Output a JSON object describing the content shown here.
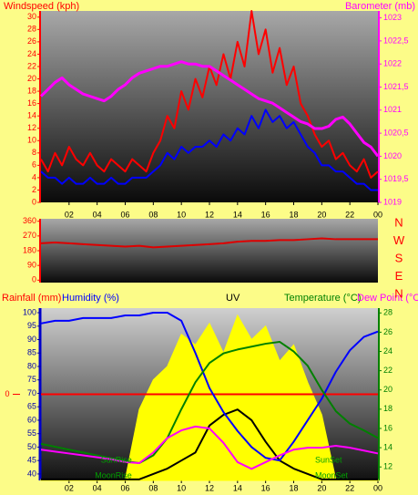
{
  "chart_data": [
    {
      "type": "line",
      "title_left": "Windspeed (kph)",
      "title_right": "Barometer (mb)",
      "x": [
        0,
        0.5,
        1,
        1.5,
        2,
        2.5,
        3,
        3.5,
        4,
        4.5,
        5,
        5.5,
        6,
        6.5,
        7,
        7.5,
        8,
        8.5,
        9,
        9.5,
        10,
        10.5,
        11,
        11.5,
        12,
        12.5,
        13,
        13.5,
        14,
        14.5,
        15,
        15.5,
        16,
        16.5,
        17,
        17.5,
        18,
        18.5,
        19,
        19.5,
        20,
        20.5,
        21,
        21.5,
        22,
        22.5,
        23,
        23.5,
        24
      ],
      "xlim": [
        0,
        24
      ],
      "xticks": [
        {
          "value": 2,
          "label": "02"
        },
        {
          "value": 4,
          "label": "04"
        },
        {
          "value": 6,
          "label": "06"
        },
        {
          "value": 8,
          "label": "08"
        },
        10,
        12,
        14,
        16,
        18,
        20,
        22,
        {
          "value": 24,
          "label": "00"
        }
      ],
      "ylim": [
        0,
        31
      ],
      "yticks": [
        0,
        2,
        4,
        6,
        8,
        10,
        12,
        14,
        16,
        18,
        20,
        22,
        24,
        26,
        28,
        30
      ],
      "y2lim": [
        1019,
        1023.15
      ],
      "y2ticks": [
        1019,
        {
          "value": 1019.5,
          "label": "1019,5"
        },
        1020,
        {
          "value": 1020.5,
          "label": "1020,5"
        },
        1021,
        {
          "value": 1021.5,
          "label": "1021,5"
        },
        1022,
        {
          "value": 1022.5,
          "label": "1022,5"
        },
        1023
      ],
      "series": [
        {
          "color": "#ff0000",
          "values": [
            7,
            5,
            8,
            6,
            9,
            7,
            6,
            8,
            6,
            5,
            7,
            6,
            5,
            7,
            6,
            5,
            8,
            10,
            14,
            12,
            18,
            15,
            20,
            17,
            22,
            19,
            24,
            20,
            26,
            22,
            31,
            24,
            28,
            21,
            25,
            19,
            22,
            16,
            14,
            11,
            9,
            10,
            7,
            8,
            6,
            5,
            7,
            4,
            5
          ]
        },
        {
          "color": "#0000ff",
          "values": [
            5,
            4,
            4,
            3,
            4,
            3,
            3,
            4,
            3,
            3,
            4,
            3,
            3,
            4,
            4,
            4,
            5,
            6,
            8,
            7,
            9,
            8,
            9,
            9,
            10,
            9,
            11,
            10,
            12,
            11,
            14,
            12,
            15,
            13,
            14,
            12,
            13,
            11,
            9,
            8,
            6,
            6,
            5,
            5,
            4,
            3,
            3,
            2,
            2
          ]
        },
        {
          "color": "#ff00ff",
          "axis": "y2",
          "values": [
            1021.3,
            1021.45,
            1021.6,
            1021.7,
            1021.55,
            1021.45,
            1021.35,
            1021.3,
            1021.25,
            1021.2,
            1021.3,
            1021.45,
            1021.55,
            1021.7,
            1021.8,
            1021.85,
            1021.9,
            1021.95,
            1021.95,
            1022.0,
            1022.05,
            1022.0,
            1022.0,
            1021.95,
            1021.95,
            1021.85,
            1021.75,
            1021.65,
            1021.55,
            1021.45,
            1021.35,
            1021.25,
            1021.2,
            1021.15,
            1021.05,
            1020.95,
            1020.85,
            1020.75,
            1020.7,
            1020.6,
            1020.6,
            1020.65,
            1020.8,
            1020.85,
            1020.7,
            1020.5,
            1020.3,
            1020.2,
            1020.0
          ]
        }
      ]
    },
    {
      "type": "line",
      "x": [
        0,
        1,
        2,
        3,
        4,
        5,
        6,
        7,
        8,
        9,
        10,
        11,
        12,
        13,
        14,
        15,
        16,
        17,
        18,
        19,
        20,
        21,
        22,
        23,
        24
      ],
      "xlim": [
        0,
        24
      ],
      "ylim": [
        -15,
        375
      ],
      "yticks": [
        0,
        90,
        180,
        270,
        360
      ],
      "compass": [
        "N",
        "W",
        "S",
        "E",
        "N"
      ],
      "series": [
        {
          "color": "#dd0000",
          "values": [
            225,
            230,
            225,
            220,
            215,
            210,
            205,
            210,
            200,
            205,
            210,
            215,
            220,
            225,
            235,
            240,
            240,
            245,
            245,
            250,
            255,
            250,
            250,
            250,
            250
          ]
        }
      ]
    },
    {
      "type": "line",
      "rainfall_label": "Rainfall (mm)",
      "humidity_label": "Humidity (%)",
      "uv_label": "UV",
      "temperature_label": "Temperature (°C)",
      "dewpoint_label": "Dew Point (°C",
      "x": [
        0,
        1,
        2,
        3,
        4,
        5,
        6,
        7,
        8,
        9,
        10,
        11,
        12,
        13,
        14,
        15,
        16,
        17,
        18,
        19,
        20,
        21,
        22,
        23,
        24
      ],
      "xlim": [
        0,
        24
      ],
      "xticks": [
        {
          "value": 2,
          "label": "02"
        },
        {
          "value": 4,
          "label": "04"
        },
        {
          "value": 6,
          "label": "06"
        },
        {
          "value": 8,
          "label": "08"
        },
        10,
        12,
        14,
        16,
        18,
        20,
        22,
        {
          "value": 24,
          "label": "00"
        }
      ],
      "ylim": [
        37.6,
        101.7
      ],
      "yticks": [
        40,
        45,
        50,
        55,
        60,
        65,
        70,
        75,
        80,
        85,
        90,
        95,
        100
      ],
      "y2lim": [
        10.6,
        28.5
      ],
      "y2ticks": [
        12,
        14,
        16,
        18,
        20,
        22,
        24,
        26,
        28
      ],
      "y3lim": [
        -1,
        1
      ],
      "y3ticks": [
        0
      ],
      "series": [
        {
          "color": "#ffff00",
          "area": true,
          "values": [
            38,
            38,
            38,
            38,
            38,
            38,
            38,
            64,
            75,
            80,
            92,
            88,
            96,
            85,
            99,
            90,
            95,
            82,
            88,
            74,
            62,
            38,
            38,
            38,
            38
          ]
        },
        {
          "color": "#000000",
          "values": [
            38,
            38,
            38,
            38,
            38,
            38,
            38,
            38,
            40,
            42,
            45,
            48,
            58,
            62,
            64,
            60,
            52,
            45,
            42,
            40,
            38,
            38,
            38,
            38,
            38
          ]
        },
        {
          "color": "#ff0000",
          "axis": "y3",
          "values": [
            0,
            0,
            0,
            0,
            0,
            0,
            0,
            0,
            0,
            0,
            0,
            0,
            0,
            0,
            0,
            0,
            0,
            0,
            0,
            0,
            0,
            0,
            0,
            0,
            0
          ]
        },
        {
          "color": "#0000ff",
          "values": [
            96,
            97,
            97,
            98,
            98,
            98,
            99,
            99,
            100,
            100,
            97,
            85,
            72,
            63,
            56,
            50,
            46,
            45,
            52,
            60,
            68,
            78,
            86,
            91,
            93
          ]
        },
        {
          "color": "#008000",
          "axis": "y2",
          "values": [
            14.4,
            14.1,
            13.8,
            13.5,
            13.2,
            12.9,
            12.6,
            12.4,
            13.2,
            15,
            18,
            20.8,
            22.8,
            23.8,
            24.2,
            24.5,
            24.8,
            25,
            24,
            22.5,
            20,
            17.8,
            16.5,
            15.8,
            15
          ]
        },
        {
          "color": "#ff00ff",
          "axis": "y2",
          "values": [
            13.8,
            13.6,
            13.4,
            13.2,
            13.0,
            12.8,
            12.5,
            12.4,
            13.5,
            15,
            15.8,
            16.2,
            16,
            14.5,
            12.5,
            11.8,
            12.5,
            13.2,
            13.8,
            14,
            14,
            14.2,
            14,
            13.7,
            13.4
          ]
        }
      ],
      "annotations": [
        {
          "text": "SunRise",
          "x": 6.6
        },
        {
          "text": "MoonRise",
          "x": 6.6
        },
        {
          "text": "SunSet",
          "x": 20.3
        },
        {
          "text": "MoonSet",
          "x": 20.3
        }
      ]
    }
  ]
}
